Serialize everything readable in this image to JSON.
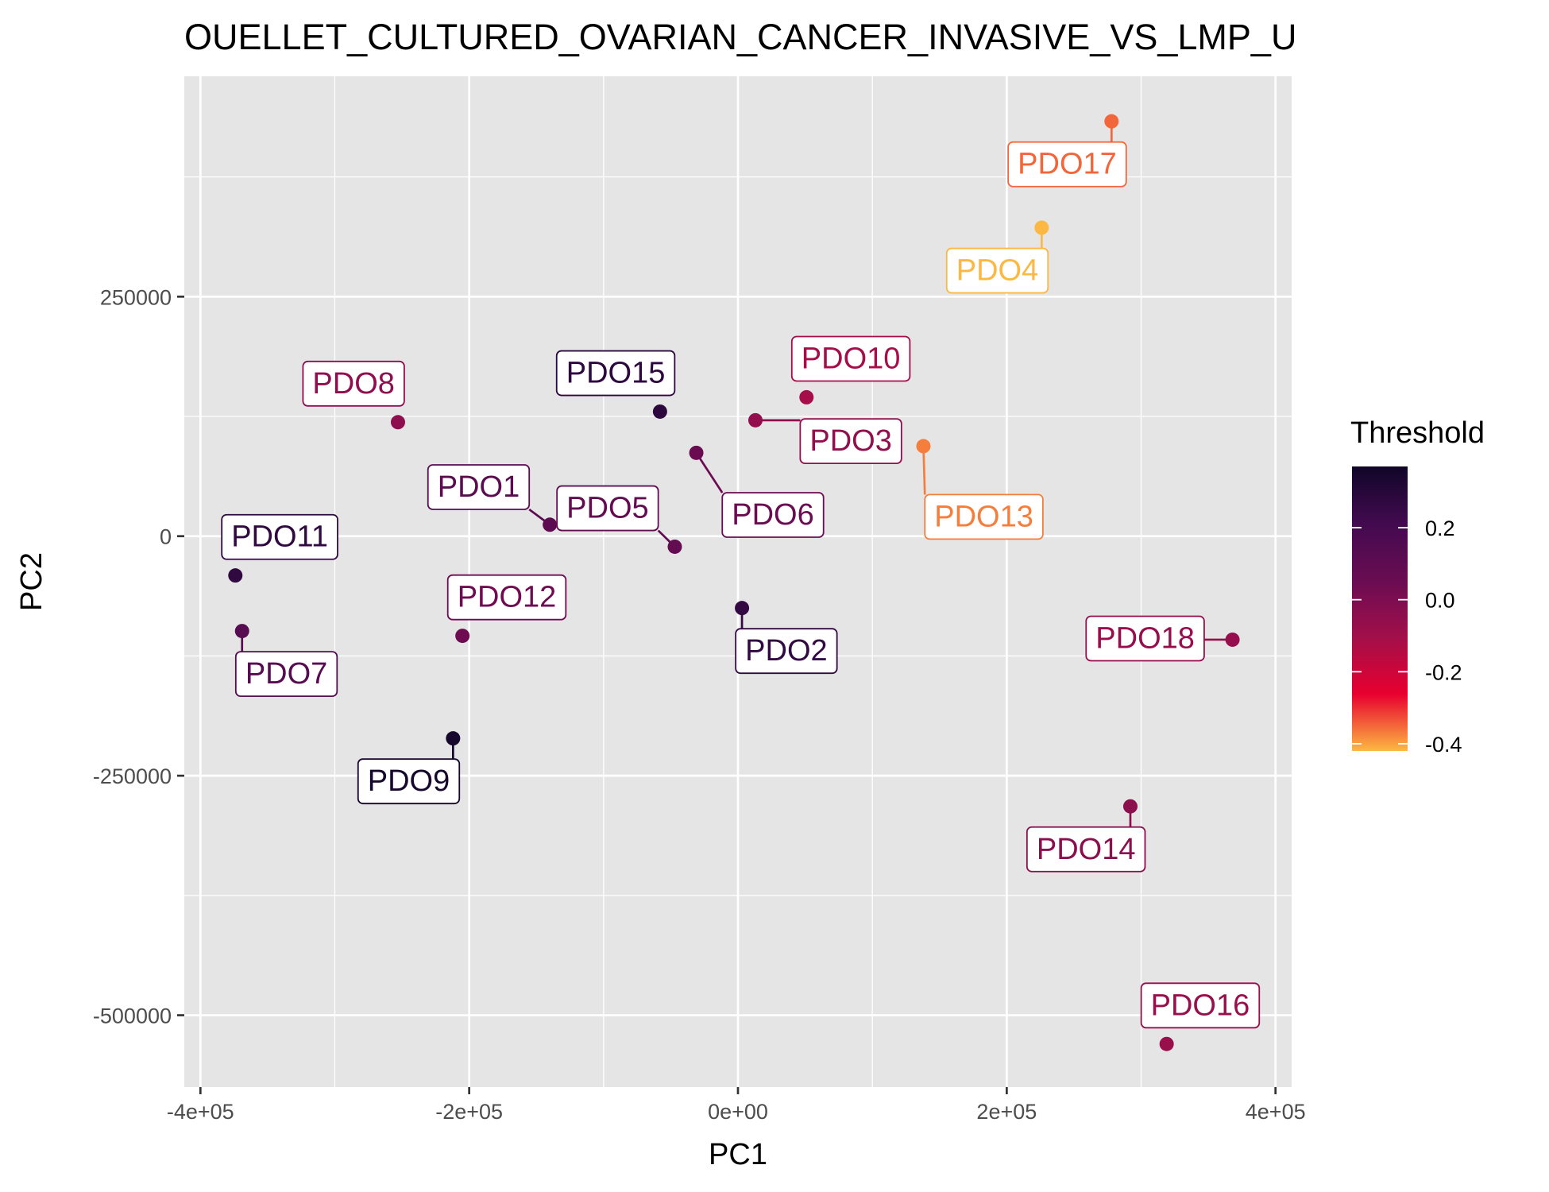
{
  "chart_data": {
    "type": "scatter",
    "title": "OUELLET_CULTURED_OVARIAN_CANCER_INVASIVE_VS_LMP_U",
    "xlabel": "PC1",
    "ylabel": "PC2",
    "xlim": [
      -412000,
      412000
    ],
    "ylim": [
      -575000,
      480000
    ],
    "x_ticks": [
      {
        "value": -400000,
        "label": "-4e+05"
      },
      {
        "value": -200000,
        "label": "-2e+05"
      },
      {
        "value": 0,
        "label": "0e+00"
      },
      {
        "value": 200000,
        "label": "2e+05"
      },
      {
        "value": 400000,
        "label": "4e+05"
      }
    ],
    "y_ticks": [
      {
        "value": 250000,
        "label": "250000"
      },
      {
        "value": 0,
        "label": "0"
      },
      {
        "value": -250000,
        "label": "-250000"
      },
      {
        "value": -500000,
        "label": "-500000"
      }
    ],
    "grid": true,
    "legend": {
      "title": "Threshold",
      "placement": "right",
      "type": "colorbar",
      "min": -0.42,
      "max": 0.37,
      "ticks": [
        0.2,
        0.0,
        -0.2,
        -0.4
      ],
      "tick_labels": [
        "0.2",
        "0.0",
        "-0.2",
        "-0.4"
      ],
      "colors": [
        "#fcb842",
        "#e8002f",
        "#a20f4a",
        "#6a0c52",
        "#420a4f",
        "#100628"
      ]
    },
    "points": [
      {
        "label": "PDO1",
        "x": -140000,
        "y": 12000,
        "threshold": 0.11,
        "label_dx": -53000,
        "label_dy": 40000
      },
      {
        "label": "PDO2",
        "x": 3000,
        "y": -75000,
        "threshold": 0.26,
        "label_dx": 33000,
        "label_dy": -44000
      },
      {
        "label": "PDO3",
        "x": 13000,
        "y": 121000,
        "threshold": -0.06,
        "label_dx": 71000,
        "label_dy": -21000
      },
      {
        "label": "PDO4",
        "x": 226000,
        "y": 322000,
        "threshold": -0.42,
        "label_dx": -33000,
        "label_dy": -44000
      },
      {
        "label": "PDO5",
        "x": -47000,
        "y": -11000,
        "threshold": 0.08,
        "label_dx": -50000,
        "label_dy": 41000
      },
      {
        "label": "PDO6",
        "x": -31000,
        "y": 87000,
        "threshold": 0.05,
        "label_dx": 57000,
        "label_dy": -64000
      },
      {
        "label": "PDO7",
        "x": -369000,
        "y": -99000,
        "threshold": 0.13,
        "label_dx": 33000,
        "label_dy": -44000
      },
      {
        "label": "PDO8",
        "x": -253000,
        "y": 119000,
        "threshold": -0.05,
        "label_dx": -33000,
        "label_dy": 41000
      },
      {
        "label": "PDO9",
        "x": -212000,
        "y": -211000,
        "threshold": 0.35,
        "label_dx": -33000,
        "label_dy": -44000
      },
      {
        "label": "PDO10",
        "x": 51000,
        "y": 145000,
        "threshold": -0.11,
        "label_dx": 33000,
        "label_dy": 41000
      },
      {
        "label": "PDO11",
        "x": -374000,
        "y": -41000,
        "threshold": 0.27,
        "label_dx": 33000,
        "label_dy": 41000
      },
      {
        "label": "PDO12",
        "x": -205000,
        "y": -104000,
        "threshold": 0.04,
        "label_dx": 33000,
        "label_dy": 41000
      },
      {
        "label": "PDO13",
        "x": 138000,
        "y": 94000,
        "threshold": -0.37,
        "label_dx": 45000,
        "label_dy": -73000
      },
      {
        "label": "PDO14",
        "x": 292000,
        "y": -282000,
        "threshold": -0.04,
        "label_dx": -33000,
        "label_dy": -44000
      },
      {
        "label": "PDO15",
        "x": -58000,
        "y": 130000,
        "threshold": 0.28,
        "label_dx": -33000,
        "label_dy": 41000
      },
      {
        "label": "PDO16",
        "x": 319000,
        "y": -530000,
        "threshold": -0.08,
        "label_dx": 25000,
        "label_dy": 41000
      },
      {
        "label": "PDO17",
        "x": 278000,
        "y": 433000,
        "threshold": -0.35,
        "label_dx": -33000,
        "label_dy": -44000
      },
      {
        "label": "PDO18",
        "x": 368000,
        "y": -108000,
        "threshold": -0.07,
        "label_dx": -65000,
        "label_dy": 2000
      }
    ]
  }
}
